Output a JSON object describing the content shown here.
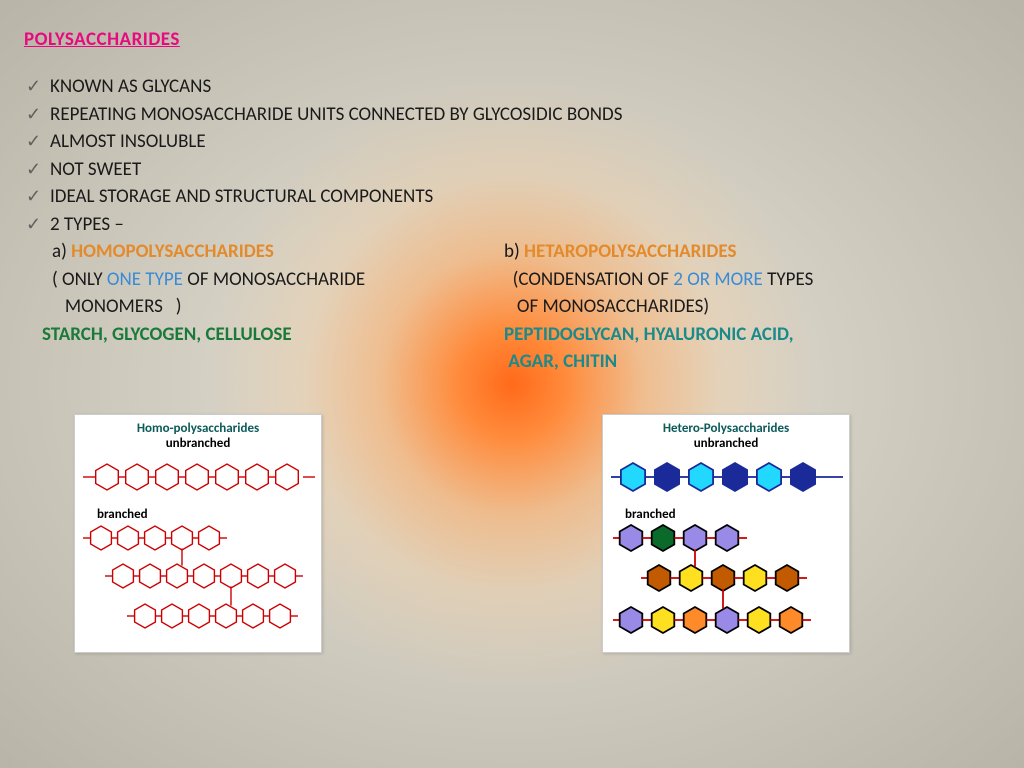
{
  "title": "POLYSACCHARIDES",
  "bullets": [
    "KNOWN AS GLYCANS",
    "REPEATING MONOSACCHARIDE UNITS CONNECTED BY GLYCOSIDIC BONDS",
    "ALMOST INSOLUBLE",
    "NOT SWEET",
    "IDEAL STORAGE AND STRUCTURAL COMPONENTS",
    "2 TYPES –"
  ],
  "typeA": {
    "letter": "a) ",
    "name": "HOMOPOLYSACCHARIDES",
    "desc1_pre": "( ONLY ",
    "desc1_hl": "ONE TYPE",
    "desc1_post": " OF MONOSACCHARIDE",
    "desc2": "   MONOMERS   )",
    "examples": "STARCH, GLYCOGEN, CELLULOSE"
  },
  "typeB": {
    "letter": "b) ",
    "name": "HETAROPOLYSACCHARIDES",
    "desc1_pre": "  (CONDENSATION OF ",
    "desc1_hl": "2 OR MORE",
    "desc1_post": " TYPES",
    "desc2": "   OF MONOSACCHARIDES)",
    "examples1": "PEPTIDOGLYCAN, HYALURONIC ACID,",
    "examples2": " AGAR, CHITIN"
  },
  "panelA": {
    "title": "Homo-polysaccharides",
    "sub1": "unbranched",
    "sub2": "branched"
  },
  "panelB": {
    "title": "Hetero-Polysaccharides",
    "sub1": "unbranched",
    "sub2": "branched"
  },
  "colors": {
    "title": "#e8097f",
    "orange": "#e38b2c",
    "blue": "#3a8ad6",
    "green": "#1a7a3a",
    "teal": "#1a8a8a",
    "hex_outline": "#cc0000",
    "hetero": {
      "cyan": "#22d8ff",
      "navy": "#1a2a99",
      "purple": "#9a8ae8",
      "darkgreen": "#0a6a2a",
      "darkorange": "#c25a00",
      "yellow": "#ffe020",
      "orangefill": "#ff8a2a"
    }
  }
}
